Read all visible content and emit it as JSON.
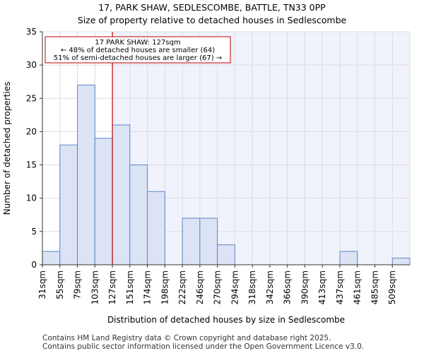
{
  "header": {
    "title": "17, PARK SHAW, SEDLESCOMBE, BATTLE, TN33 0PP",
    "subtitle": "Size of property relative to detached houses in Sedlescombe"
  },
  "footer": {
    "line1": "Contains HM Land Registry data © Crown copyright and database right 2025.",
    "line2": "Contains public sector information licensed under the Open Government Licence v3.0."
  },
  "colors": {
    "bar_fill": "#dbe3f5",
    "bar_stroke": "#5b87c8",
    "marker": "#c00000",
    "highlight_bg": "#f0f3fb",
    "grid": "#dddddd"
  },
  "chart_data": {
    "type": "bar",
    "title": "17, PARK SHAW, SEDLESCOMBE, BATTLE, TN33 0PP",
    "subtitle": "Size of property relative to detached houses in Sedlescombe",
    "xlabel": "Distribution of detached houses by size in Sedlescombe",
    "ylabel": "Number of detached properties",
    "categories": [
      "31sqm",
      "55sqm",
      "79sqm",
      "103sqm",
      "127sqm",
      "151sqm",
      "174sqm",
      "198sqm",
      "222sqm",
      "246sqm",
      "270sqm",
      "294sqm",
      "318sqm",
      "342sqm",
      "366sqm",
      "390sqm",
      "413sqm",
      "437sqm",
      "461sqm",
      "485sqm",
      "509sqm"
    ],
    "values": [
      2,
      18,
      27,
      19,
      21,
      15,
      11,
      0,
      7,
      7,
      3,
      0,
      0,
      0,
      0,
      0,
      0,
      2,
      0,
      0,
      1
    ],
    "ylim": [
      0,
      35
    ],
    "yticks": [
      0,
      5,
      10,
      15,
      20,
      25,
      30,
      35
    ],
    "grid": true,
    "marker": {
      "value_label": "127sqm",
      "category_index": 4,
      "annotation": [
        "17 PARK SHAW: 127sqm",
        "← 48% of detached houses are smaller (64)",
        "51% of semi-detached houses are larger (67) →"
      ]
    }
  }
}
